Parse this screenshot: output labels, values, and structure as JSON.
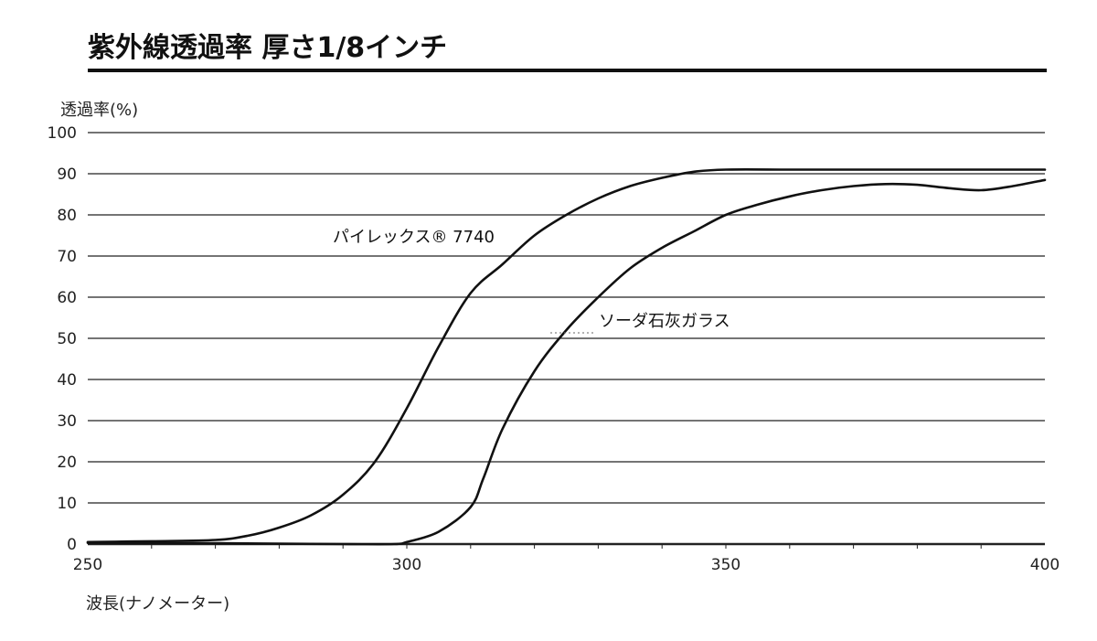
{
  "chart_data": {
    "type": "line",
    "title": "紫外線透過率  厚さ1/8インチ",
    "ylabel": "透過率(%)",
    "xlabel": "波長(ナノメーター)",
    "xlim": [
      250,
      400
    ],
    "ylim": [
      0,
      100
    ],
    "x_ticks": [
      "250",
      "300",
      "350",
      "400"
    ],
    "y_ticks": [
      "0",
      "10",
      "20",
      "30",
      "40",
      "50",
      "60",
      "70",
      "80",
      "90",
      "100"
    ],
    "grid": true,
    "series": [
      {
        "name": "パイレックス® 7740",
        "x": [
          250,
          260,
          270,
          275,
          280,
          285,
          290,
          295,
          300,
          305,
          310,
          315,
          320,
          325,
          330,
          335,
          340,
          345,
          350,
          360,
          370,
          380,
          390,
          400
        ],
        "y": [
          0.5,
          0.7,
          1,
          2,
          4,
          7,
          12,
          20,
          33,
          48,
          61,
          68,
          75,
          80,
          84,
          87,
          89,
          90.5,
          91,
          91,
          91,
          91,
          91,
          91
        ]
      },
      {
        "name": "ソーダ石灰ガラス",
        "x": [
          250,
          270,
          290,
          298,
          300,
          305,
          310,
          312,
          315,
          320,
          325,
          330,
          335,
          340,
          345,
          350,
          355,
          360,
          365,
          370,
          375,
          380,
          385,
          390,
          395,
          400
        ],
        "y": [
          0.3,
          0.2,
          0,
          0,
          0.5,
          3,
          9,
          16,
          28,
          42,
          52,
          60,
          67,
          72,
          76,
          80,
          82.5,
          84.5,
          86,
          87,
          87.5,
          87.3,
          86.5,
          86,
          87,
          88.5
        ]
      }
    ]
  }
}
